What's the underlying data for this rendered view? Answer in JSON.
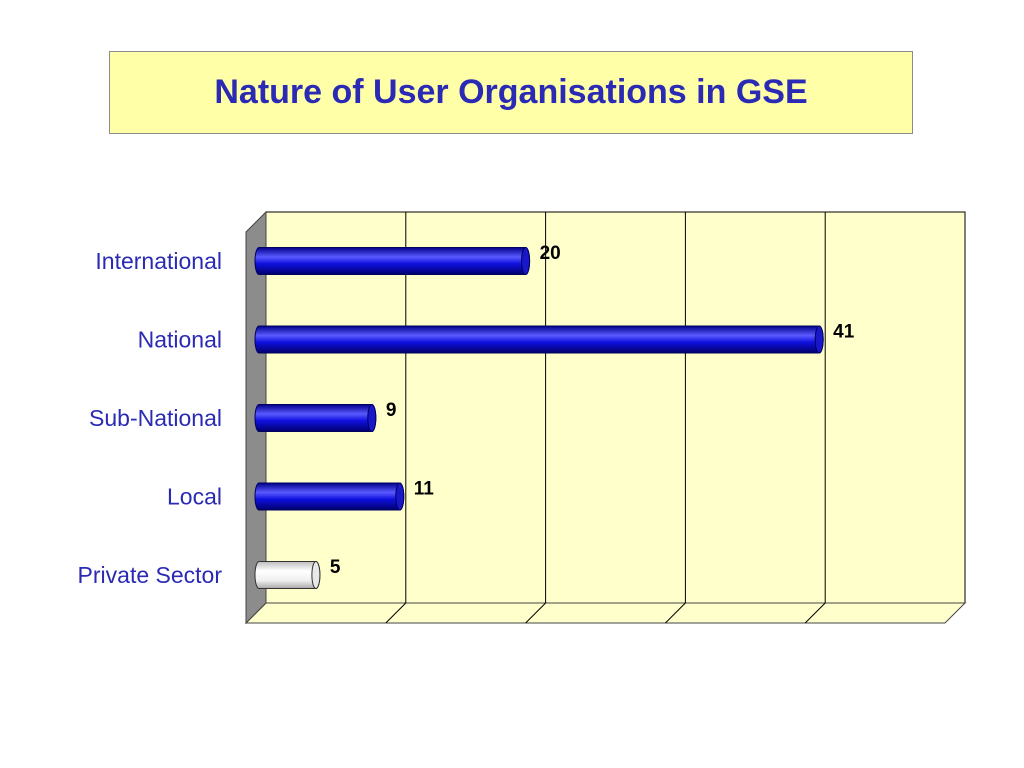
{
  "title": "Nature of User Organisations in GSE",
  "colors": {
    "title_text": "#2a2ab4",
    "title_background": "#ffffa8",
    "plot_background": "#ffffcc",
    "side_wall": "#8c8c8c",
    "bar_fill": "#1010e0",
    "bar_highlight": "#5a5aff",
    "highlight_bar_fill": "#f0f0f0"
  },
  "chart_data": {
    "type": "bar",
    "orientation": "horizontal",
    "style": "3d",
    "title": "Nature of User Organisations in GSE",
    "categories": [
      "International",
      "National",
      "Sub-National",
      "Local",
      "Private Sector"
    ],
    "values": [
      20,
      41,
      9,
      11,
      5
    ],
    "value_labels": [
      "20",
      "41",
      "9",
      "11",
      "5"
    ],
    "highlighted_category": "Private Sector",
    "xlim": [
      0,
      50
    ],
    "xgrid": true,
    "xtick_labels_shown": false,
    "legend": "none"
  }
}
